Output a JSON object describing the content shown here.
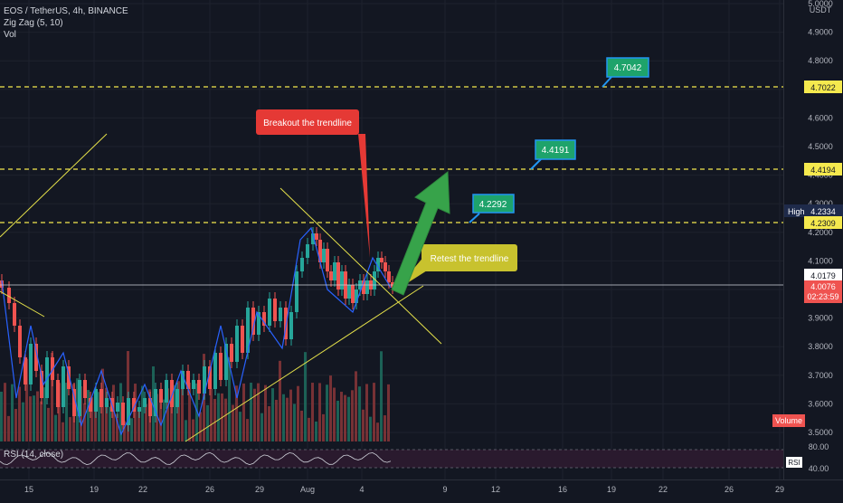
{
  "legend": {
    "symbol": "EOS / TetherUS, 4h, BINANCE",
    "indicator1": "Zig Zag (5, 10)",
    "indicator2": "Vol"
  },
  "price_axis": {
    "currency": "USDT",
    "ticks": [
      "5.0000",
      "4.9000",
      "4.8000",
      "4.7000",
      "4.6000",
      "4.5000",
      "4.4000",
      "4.3000",
      "4.2000",
      "4.1000",
      "4.0000",
      "3.9000",
      "3.8000",
      "3.7000",
      "3.6000",
      "3.5000"
    ],
    "high_label": "High",
    "high_value": "4.2334",
    "tag_4_7022": "4.7022",
    "tag_4_4194": "4.4194",
    "tag_4_2309": "4.2309",
    "tag_4_0179": "4.0179",
    "last_price": "4.0076",
    "countdown": "02:23:59",
    "volume_label": "Volume"
  },
  "time_axis": {
    "labels": [
      "15",
      "19",
      "22",
      "26",
      "29",
      "Aug",
      "4",
      "9",
      "12",
      "16",
      "19",
      "22",
      "26",
      "29"
    ]
  },
  "annotations": {
    "target1": "4.2292",
    "target2": "4.4191",
    "target3": "4.7042",
    "breakout": "Breakout the trendline",
    "retest": "Retest the trendline"
  },
  "rsi": {
    "label": "RSI (14, close)",
    "upper": "80.00",
    "lower": "40.00",
    "tag": "RSI"
  },
  "colors": {
    "background": "#131722",
    "bull": "#26a69a",
    "bear": "#ef5350",
    "level_line": "#f5e94e",
    "target_box": "#1ea36b",
    "target_border": "#2196f3",
    "breakout_box": "#e53935",
    "retest_box": "#c8c22e",
    "arrow": "#37a34a",
    "price_tag_yellow": "#f5e94e",
    "last_price_red": "#ef5350"
  },
  "chart_data": {
    "type": "candlestick",
    "symbol": "EOS / TetherUS",
    "timeframe": "4h",
    "exchange": "BINANCE",
    "y_range": [
      3.5,
      5.0
    ],
    "levels": [
      4.7022,
      4.4194,
      4.2309
    ],
    "targets": [
      4.2292,
      4.4191,
      4.7042
    ],
    "session_high": 4.2334,
    "last_price": 4.0076,
    "reference_price": 4.0179,
    "x_axis_labels": [
      "15",
      "19",
      "22",
      "26",
      "29",
      "Aug",
      "4",
      "9",
      "12",
      "16",
      "19",
      "22",
      "26",
      "29"
    ]
  }
}
